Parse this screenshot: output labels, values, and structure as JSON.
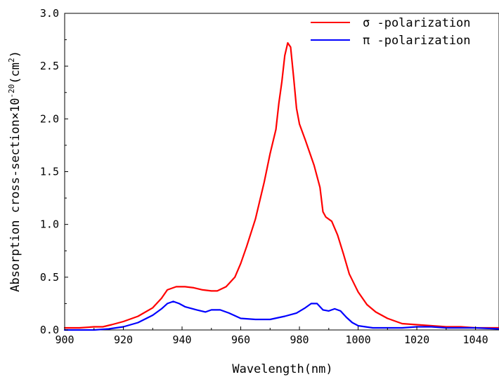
{
  "chart_data": {
    "type": "line",
    "xlabel": "Wavelength(nm)",
    "ylabel": "Absorption cross-section×10",
    "ylabel_exponent": "-20",
    "ylabel_unit_open": "(cm",
    "ylabel_unit_exponent": "2",
    "ylabel_unit_close": ")",
    "xlim": [
      900,
      1048
    ],
    "ylim": [
      0,
      3.0
    ],
    "xticks": [
      900,
      920,
      940,
      960,
      980,
      1000,
      1020,
      1040
    ],
    "xtick_labels": [
      "900",
      "920",
      "940",
      "960",
      "980",
      "1000",
      "1020",
      "1040"
    ],
    "yticks": [
      0,
      0.5,
      1.0,
      1.5,
      2.0,
      2.5,
      3.0
    ],
    "ytick_labels": [
      "0.0",
      "0.5",
      "1.0",
      "1.5",
      "2.0",
      "2.5",
      "3.0"
    ],
    "grid": false,
    "legend_position": "top-right",
    "series": [
      {
        "name": "σ -polarization",
        "color": "#ff0000",
        "x": [
          900,
          905,
          910,
          913,
          916,
          920,
          925,
          930,
          933,
          935,
          938,
          941,
          944,
          947,
          950,
          952,
          955,
          958,
          960,
          962,
          965,
          968,
          970,
          972,
          973,
          974,
          975,
          976,
          977,
          978,
          979,
          980,
          982,
          985,
          987,
          988,
          989,
          991,
          993,
          995,
          997,
          1000,
          1003,
          1006,
          1010,
          1015,
          1020,
          1025,
          1030,
          1035,
          1040,
          1048
        ],
        "y": [
          0.02,
          0.02,
          0.03,
          0.03,
          0.05,
          0.08,
          0.13,
          0.21,
          0.3,
          0.38,
          0.41,
          0.41,
          0.4,
          0.38,
          0.37,
          0.37,
          0.41,
          0.5,
          0.63,
          0.79,
          1.05,
          1.4,
          1.67,
          1.9,
          2.15,
          2.35,
          2.6,
          2.72,
          2.68,
          2.4,
          2.1,
          1.95,
          1.8,
          1.56,
          1.35,
          1.12,
          1.07,
          1.03,
          0.9,
          0.72,
          0.53,
          0.36,
          0.24,
          0.17,
          0.11,
          0.06,
          0.05,
          0.04,
          0.03,
          0.03,
          0.02,
          0.02
        ]
      },
      {
        "name": "π -polarization",
        "color": "#0000ff",
        "x": [
          900,
          910,
          915,
          920,
          925,
          930,
          933,
          935,
          937,
          939,
          941,
          945,
          948,
          950,
          953,
          956,
          960,
          965,
          970,
          975,
          979,
          982,
          984,
          986,
          988,
          990,
          992,
          994,
          996,
          998,
          1000,
          1005,
          1010,
          1015,
          1020,
          1025,
          1030,
          1035,
          1040,
          1048
        ],
        "y": [
          0.0,
          0.0,
          0.01,
          0.03,
          0.07,
          0.14,
          0.2,
          0.25,
          0.27,
          0.25,
          0.22,
          0.19,
          0.17,
          0.19,
          0.19,
          0.16,
          0.11,
          0.1,
          0.1,
          0.13,
          0.16,
          0.21,
          0.25,
          0.25,
          0.19,
          0.18,
          0.2,
          0.18,
          0.12,
          0.07,
          0.04,
          0.02,
          0.02,
          0.02,
          0.03,
          0.03,
          0.02,
          0.02,
          0.02,
          0.01
        ]
      }
    ]
  }
}
